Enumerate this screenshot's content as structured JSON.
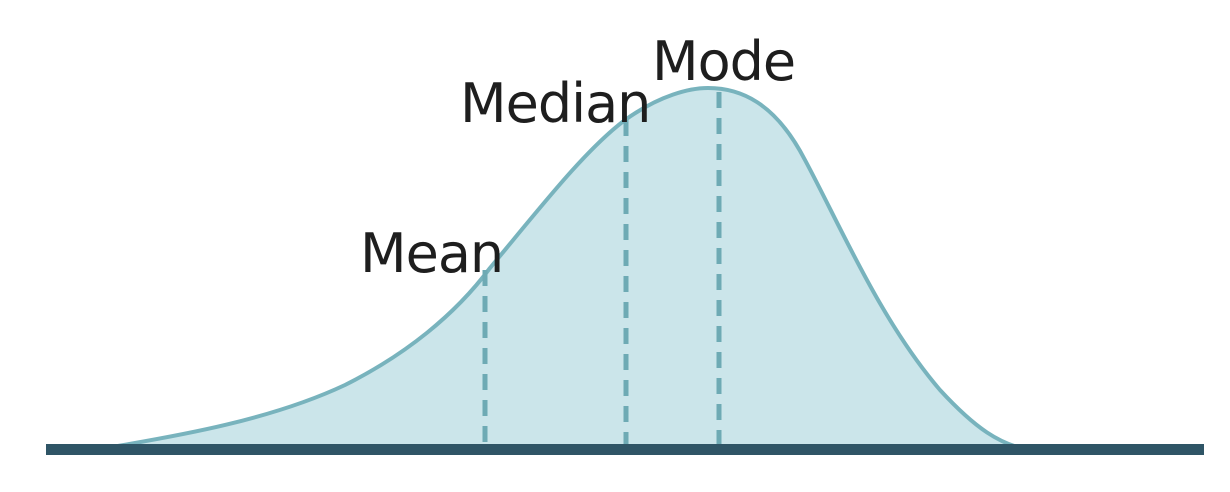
{
  "labels": {
    "mean": "Mean",
    "median": "Median",
    "mode": "Mode"
  },
  "colors": {
    "curve_fill": "#cbe5ea",
    "curve_stroke": "#78b3bd",
    "marker_line": "#6eaab4",
    "baseline": "#2f5566",
    "label_text": "#1e1e1e"
  }
}
